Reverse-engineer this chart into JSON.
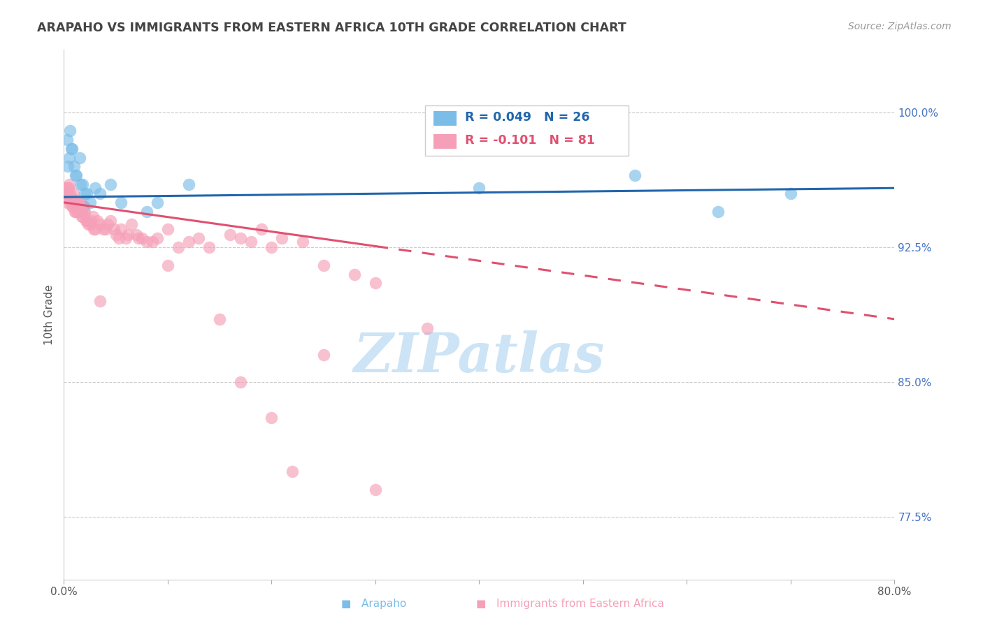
{
  "title": "ARAPAHO VS IMMIGRANTS FROM EASTERN AFRICA 10TH GRADE CORRELATION CHART",
  "source": "Source: ZipAtlas.com",
  "ylabel": "10th Grade",
  "xlim": [
    0.0,
    80.0
  ],
  "ylim": [
    74.0,
    103.5
  ],
  "yticks": [
    77.5,
    85.0,
    92.5,
    100.0
  ],
  "ytick_labels": [
    "77.5%",
    "85.0%",
    "92.5%",
    "100.0%"
  ],
  "xticks": [
    0.0,
    10.0,
    20.0,
    30.0,
    40.0,
    50.0,
    60.0,
    70.0,
    80.0
  ],
  "arapaho_R": 0.049,
  "arapaho_N": 26,
  "eastern_africa_R": -0.101,
  "eastern_africa_N": 81,
  "arapaho_color": "#7bbde8",
  "eastern_africa_color": "#f5a0b8",
  "arapaho_line_color": "#2166ac",
  "eastern_africa_line_color": "#e05070",
  "background_color": "#ffffff",
  "grid_color": "#cccccc",
  "title_color": "#444444",
  "source_color": "#999999",
  "watermark_color": "#cce4f5",
  "arapaho_x": [
    0.3,
    0.5,
    0.6,
    0.8,
    1.0,
    1.2,
    1.5,
    1.8,
    2.0,
    2.5,
    3.5,
    4.5,
    8.0,
    9.0,
    12.0,
    40.0,
    55.0,
    63.0,
    70.0,
    0.4,
    0.7,
    1.1,
    1.6,
    2.2,
    3.0,
    5.5
  ],
  "arapaho_y": [
    98.5,
    97.5,
    99.0,
    98.0,
    97.0,
    96.5,
    97.5,
    96.0,
    95.5,
    95.0,
    95.5,
    96.0,
    94.5,
    95.0,
    96.0,
    95.8,
    96.5,
    94.5,
    95.5,
    97.0,
    98.0,
    96.5,
    96.0,
    95.5,
    95.8,
    95.0
  ],
  "eastern_africa_x": [
    0.2,
    0.3,
    0.4,
    0.5,
    0.6,
    0.7,
    0.8,
    0.9,
    1.0,
    1.1,
    1.2,
    1.3,
    1.4,
    1.5,
    1.6,
    1.7,
    1.8,
    1.9,
    2.0,
    2.2,
    2.5,
    2.8,
    3.0,
    3.5,
    4.0,
    4.5,
    5.0,
    5.5,
    6.0,
    6.5,
    7.0,
    7.5,
    8.0,
    9.0,
    10.0,
    11.0,
    12.0,
    13.0,
    14.0,
    16.0,
    17.0,
    18.0,
    19.0,
    20.0,
    21.0,
    23.0,
    25.0,
    28.0,
    30.0,
    35.0,
    0.15,
    0.25,
    0.35,
    0.45,
    0.55,
    0.65,
    0.75,
    0.85,
    0.95,
    1.05,
    1.15,
    1.25,
    1.35,
    1.45,
    1.55,
    1.65,
    1.75,
    1.85,
    1.95,
    2.1,
    2.3,
    2.6,
    2.9,
    3.2,
    3.8,
    4.2,
    4.8,
    5.3,
    6.2,
    7.2,
    8.5
  ],
  "eastern_africa_y": [
    95.5,
    95.0,
    95.8,
    96.0,
    95.5,
    95.0,
    94.8,
    95.2,
    95.0,
    94.5,
    95.0,
    94.5,
    94.8,
    95.0,
    94.8,
    94.5,
    94.2,
    94.8,
    94.5,
    94.0,
    93.8,
    94.2,
    93.5,
    93.8,
    93.5,
    94.0,
    93.2,
    93.5,
    93.0,
    93.8,
    93.2,
    93.0,
    92.8,
    93.0,
    93.5,
    92.5,
    92.8,
    93.0,
    92.5,
    93.2,
    93.0,
    92.8,
    93.5,
    92.5,
    93.0,
    92.8,
    91.5,
    91.0,
    90.5,
    88.0,
    95.8,
    95.2,
    95.5,
    95.8,
    95.3,
    95.0,
    94.8,
    95.0,
    95.5,
    94.5,
    95.0,
    94.8,
    94.5,
    95.0,
    94.8,
    94.5,
    94.2,
    94.8,
    94.5,
    94.0,
    93.8,
    94.0,
    93.5,
    94.0,
    93.5,
    93.8,
    93.5,
    93.0,
    93.2,
    93.0,
    92.8
  ],
  "eastern_africa_outlier_x": [
    3.5,
    10.0,
    15.0,
    17.0,
    20.0,
    25.0,
    22.0,
    30.0
  ],
  "eastern_africa_outlier_y": [
    89.5,
    91.5,
    88.5,
    85.0,
    83.0,
    86.5,
    80.0,
    79.0
  ],
  "arapaho_trend_x0": 0.0,
  "arapaho_trend_y0": 95.3,
  "arapaho_trend_x1": 80.0,
  "arapaho_trend_y1": 95.8,
  "eastern_africa_trend_x0": 0.0,
  "eastern_africa_trend_y0": 95.0,
  "eastern_africa_trend_x1": 80.0,
  "eastern_africa_trend_y1": 88.5,
  "eastern_africa_solid_end": 30.0
}
